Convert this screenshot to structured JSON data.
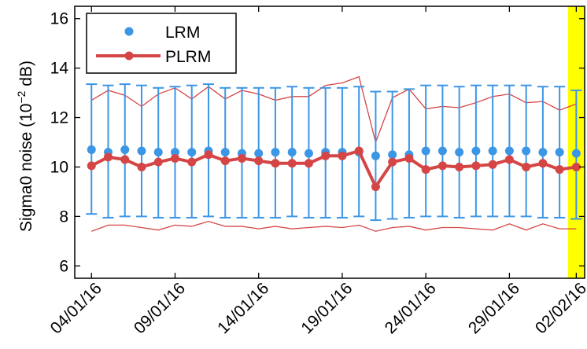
{
  "chart_data": {
    "type": "line",
    "ylabel_main": "Sigma0 noise (10",
    "ylabel_exp": "−2",
    "ylabel_unit": " dB)",
    "xlabel": "",
    "title": "",
    "ylim": [
      5.5,
      16.5
    ],
    "y_ticks": [
      "6",
      "8",
      "10",
      "12",
      "14",
      "16"
    ],
    "y_tick_values": [
      6,
      8,
      10,
      12,
      14,
      16
    ],
    "x_tick_labels": [
      "04/01/16",
      "09/01/16",
      "14/01/16",
      "19/01/16",
      "24/01/16",
      "29/01/16",
      "02/02/16"
    ],
    "x_tick_days": [
      4,
      9,
      14,
      19,
      24,
      29,
      33
    ],
    "xlim": [
      3,
      33.5
    ],
    "grid": false,
    "legend_position": "top-left",
    "highlight": {
      "x_start": 32.5,
      "x_end": 33.5,
      "color": "#ffff00"
    },
    "x_days": [
      4,
      5,
      6,
      7,
      8,
      9,
      10,
      11,
      12,
      13,
      14,
      15,
      16,
      17,
      18,
      19,
      20,
      21,
      22,
      23,
      24,
      25,
      26,
      27,
      28,
      29,
      30,
      31,
      32,
      33
    ],
    "series": [
      {
        "name": "LRM",
        "color": "#3c96e6",
        "mean": [
          10.7,
          10.6,
          10.7,
          10.65,
          10.6,
          10.6,
          10.6,
          10.65,
          10.6,
          10.55,
          10.55,
          10.6,
          10.6,
          10.55,
          10.6,
          10.6,
          10.6,
          10.45,
          10.5,
          10.5,
          10.65,
          10.65,
          10.6,
          10.65,
          10.65,
          10.65,
          10.65,
          10.6,
          10.6,
          10.55
        ],
        "upper": [
          13.35,
          13.3,
          13.35,
          13.3,
          13.2,
          13.25,
          13.3,
          13.35,
          13.2,
          13.2,
          13.2,
          13.2,
          13.25,
          13.2,
          13.2,
          13.2,
          13.25,
          13.05,
          13.05,
          13.15,
          13.3,
          13.3,
          13.25,
          13.3,
          13.3,
          13.3,
          13.3,
          13.25,
          13.25,
          13.1
        ],
        "lower": [
          8.1,
          7.95,
          8.0,
          8.0,
          7.95,
          7.95,
          7.95,
          8.0,
          7.95,
          7.95,
          7.95,
          7.95,
          8.0,
          7.95,
          7.95,
          7.95,
          8.0,
          7.85,
          7.9,
          7.95,
          8.0,
          8.0,
          7.95,
          8.0,
          8.0,
          8.0,
          8.0,
          7.95,
          7.95,
          7.9
        ]
      },
      {
        "name": "PLRM",
        "color": "#d64545",
        "values": [
          10.05,
          10.4,
          10.3,
          10.0,
          10.2,
          10.35,
          10.2,
          10.5,
          10.25,
          10.35,
          10.25,
          10.15,
          10.15,
          10.15,
          10.45,
          10.45,
          10.65,
          9.2,
          10.2,
          10.35,
          9.9,
          10.05,
          10.0,
          10.05,
          10.1,
          10.3,
          10.0,
          10.15,
          9.9,
          10.0
        ],
        "upper": [
          12.7,
          13.1,
          12.9,
          12.45,
          12.95,
          13.2,
          12.75,
          13.25,
          12.75,
          13.1,
          12.95,
          12.7,
          12.85,
          12.85,
          13.3,
          13.4,
          13.65,
          11.0,
          12.8,
          13.15,
          12.35,
          12.45,
          12.4,
          12.6,
          12.85,
          12.95,
          12.6,
          12.65,
          12.3,
          12.55
        ],
        "lower": [
          7.4,
          7.65,
          7.65,
          7.55,
          7.45,
          7.65,
          7.6,
          7.8,
          7.6,
          7.6,
          7.5,
          7.6,
          7.5,
          7.55,
          7.6,
          7.55,
          7.65,
          7.4,
          7.55,
          7.6,
          7.45,
          7.55,
          7.55,
          7.5,
          7.45,
          7.7,
          7.45,
          7.7,
          7.5,
          7.5
        ]
      }
    ]
  }
}
